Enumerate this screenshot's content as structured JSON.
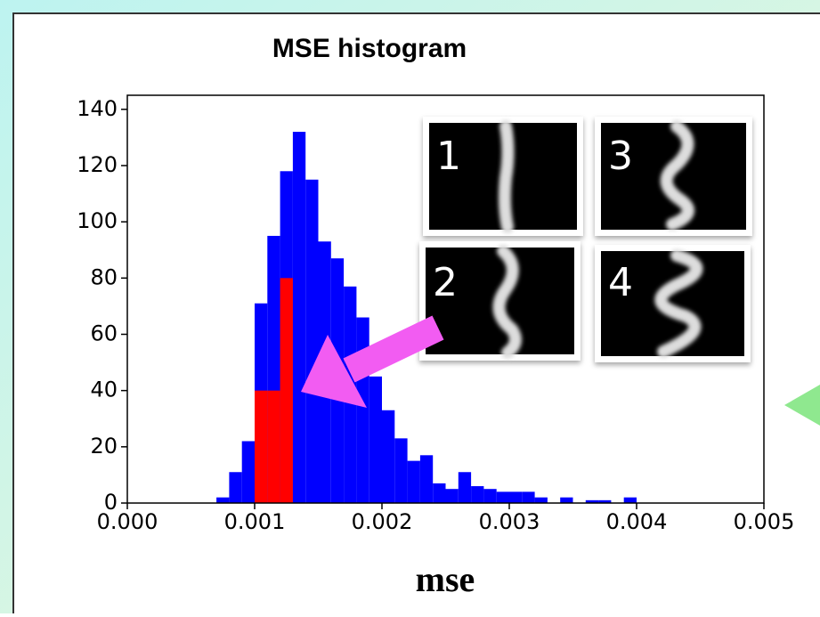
{
  "chart_data": {
    "type": "histogram",
    "title": "MSE histogram",
    "xlabel": "mse",
    "series": [
      {
        "color": "#0000ff",
        "bins": [
          0.0007,
          0.0008,
          0.0009,
          0.001,
          0.0011,
          0.0012,
          0.0013,
          0.0014,
          0.0015,
          0.0016,
          0.0017,
          0.0018,
          0.0019,
          0.002,
          0.0021,
          0.0022,
          0.0023,
          0.0024,
          0.0025,
          0.0026,
          0.0027,
          0.0028,
          0.0029,
          0.003,
          0.0031,
          0.0032,
          0.0033,
          0.0034,
          0.0035,
          0.0036,
          0.0037,
          0.0038,
          0.0039,
          0.004
        ],
        "values": [
          2,
          11,
          22,
          71,
          95,
          118,
          132,
          115,
          93,
          87,
          77,
          66,
          45,
          33,
          23,
          15,
          17,
          7,
          5,
          11,
          6,
          5,
          4,
          4,
          4,
          2,
          0,
          2,
          0,
          1,
          1,
          0,
          2
        ]
      },
      {
        "color": "#ff0000",
        "bins": [
          0.001,
          0.0011,
          0.0012,
          0.0013
        ],
        "values": [
          40,
          40,
          80
        ]
      }
    ],
    "xlim": [
      0,
      0.005
    ],
    "xticks": [
      {
        "value": 0,
        "label": "0.000"
      },
      {
        "value": 0.001,
        "label": "0.001"
      },
      {
        "value": 0.002,
        "label": "0.002"
      },
      {
        "value": 0.003,
        "label": "0.003"
      },
      {
        "value": 0.004,
        "label": "0.004"
      },
      {
        "value": 0.005,
        "label": "0.005"
      }
    ],
    "ylim": [
      0,
      145
    ],
    "yticks": [
      0,
      20,
      40,
      60,
      80,
      100,
      120,
      140
    ],
    "annotations": [
      "1",
      "2",
      "3",
      "4"
    ]
  }
}
